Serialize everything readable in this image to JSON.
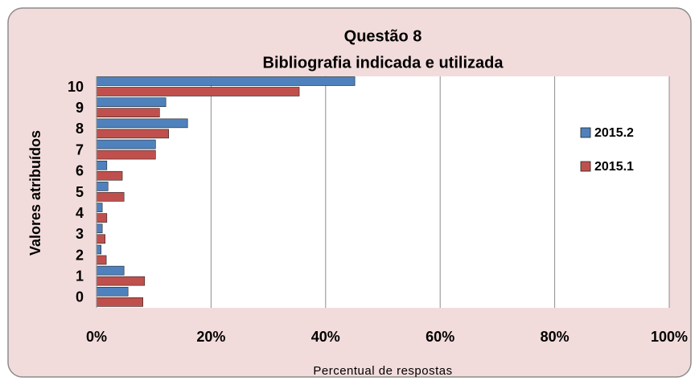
{
  "chart_data": {
    "type": "bar",
    "orientation": "horizontal",
    "title": "Questão  8",
    "subtitle": "Bibliografia indicada e utilizada",
    "ylabel": "Valores atribuídos",
    "xlabel": "Percentual de respostas",
    "categories": [
      "0",
      "1",
      "2",
      "3",
      "4",
      "5",
      "6",
      "7",
      "8",
      "9",
      "10"
    ],
    "series": [
      {
        "name": "2015.2",
        "color": "#4f81bd",
        "values": [
          5.5,
          4.8,
          0.8,
          1.0,
          1.0,
          2.0,
          1.8,
          10.3,
          15.9,
          12.1,
          45.1
        ]
      },
      {
        "name": "2015.1",
        "color": "#c0504d",
        "values": [
          8.1,
          8.4,
          1.7,
          1.5,
          1.8,
          4.8,
          4.5,
          10.3,
          12.6,
          11.0,
          35.4
        ]
      }
    ],
    "xlim": [
      0,
      100
    ],
    "xticks": [
      {
        "value": 0,
        "label": "0%"
      },
      {
        "value": 20,
        "label": "20%"
      },
      {
        "value": 40,
        "label": "40%"
      },
      {
        "value": 60,
        "label": "60%"
      },
      {
        "value": 80,
        "label": "80%"
      },
      {
        "value": 100,
        "label": "100%"
      }
    ],
    "grid": true,
    "legend": "right"
  }
}
